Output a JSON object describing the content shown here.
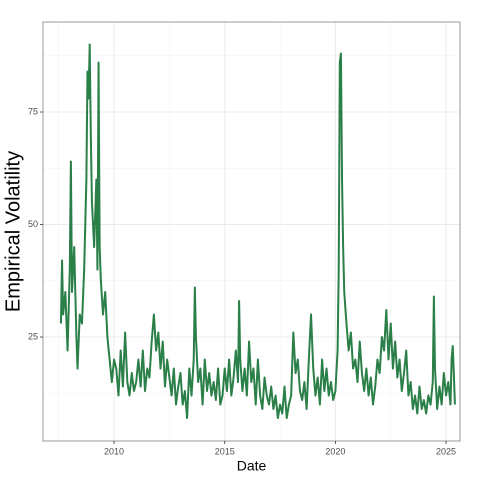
{
  "chart_data": {
    "type": "line",
    "x_label": "Date",
    "y_label": "Empirical Volatility",
    "xlim": [
      2006.79,
      2025.63
    ],
    "ylim": [
      1.9,
      95
    ],
    "xticks": [
      2010,
      2015,
      2020,
      2025
    ],
    "yticks": [
      25,
      50,
      75
    ],
    "xticks_minor": [
      2007.5,
      2012.5,
      2017.5,
      2022.5
    ],
    "yticks_minor": [
      12.5,
      37.5,
      62.5,
      87.5
    ],
    "grid": true,
    "x": [
      2007.6,
      2007.65,
      2007.7,
      2007.8,
      2007.9,
      2008.0,
      2008.05,
      2008.1,
      2008.2,
      2008.3,
      2008.35,
      2008.45,
      2008.55,
      2008.65,
      2008.75,
      2008.8,
      2008.85,
      2008.9,
      2008.95,
      2009.0,
      2009.1,
      2009.2,
      2009.25,
      2009.3,
      2009.35,
      2009.4,
      2009.5,
      2009.6,
      2009.7,
      2009.8,
      2009.9,
      2010.0,
      2010.1,
      2010.2,
      2010.3,
      2010.4,
      2010.5,
      2010.6,
      2010.7,
      2010.8,
      2010.9,
      2011.0,
      2011.1,
      2011.2,
      2011.3,
      2011.4,
      2011.5,
      2011.6,
      2011.7,
      2011.8,
      2011.9,
      2012.0,
      2012.1,
      2012.2,
      2012.3,
      2012.4,
      2012.5,
      2012.6,
      2012.7,
      2012.8,
      2012.9,
      2013.0,
      2013.1,
      2013.2,
      2013.3,
      2013.4,
      2013.5,
      2013.6,
      2013.65,
      2013.7,
      2013.8,
      2013.9,
      2014.0,
      2014.1,
      2014.2,
      2014.3,
      2014.4,
      2014.5,
      2014.6,
      2014.7,
      2014.8,
      2014.9,
      2015.0,
      2015.1,
      2015.2,
      2015.3,
      2015.4,
      2015.5,
      2015.6,
      2015.65,
      2015.7,
      2015.8,
      2015.9,
      2016.0,
      2016.1,
      2016.2,
      2016.3,
      2016.4,
      2016.5,
      2016.6,
      2016.7,
      2016.8,
      2016.9,
      2017.0,
      2017.1,
      2017.2,
      2017.3,
      2017.4,
      2017.5,
      2017.6,
      2017.7,
      2017.8,
      2017.9,
      2018.0,
      2018.1,
      2018.2,
      2018.3,
      2018.4,
      2018.5,
      2018.6,
      2018.7,
      2018.8,
      2018.9,
      2019.0,
      2019.1,
      2019.2,
      2019.3,
      2019.4,
      2019.5,
      2019.6,
      2019.7,
      2019.8,
      2019.9,
      2020.0,
      2020.1,
      2020.15,
      2020.2,
      2020.25,
      2020.3,
      2020.35,
      2020.4,
      2020.5,
      2020.6,
      2020.7,
      2020.8,
      2020.9,
      2021.0,
      2021.1,
      2021.2,
      2021.3,
      2021.4,
      2021.5,
      2021.6,
      2021.7,
      2021.8,
      2021.9,
      2022.0,
      2022.1,
      2022.2,
      2022.3,
      2022.4,
      2022.5,
      2022.6,
      2022.7,
      2022.8,
      2022.9,
      2023.0,
      2023.1,
      2023.2,
      2023.3,
      2023.4,
      2023.5,
      2023.6,
      2023.7,
      2023.8,
      2023.9,
      2024.0,
      2024.1,
      2024.2,
      2024.3,
      2024.4,
      2024.45,
      2024.5,
      2024.6,
      2024.7,
      2024.8,
      2024.9,
      2025.0,
      2025.1,
      2025.2,
      2025.25,
      2025.3,
      2025.35,
      2025.4
    ],
    "series": [
      {
        "name": "Empirical Volatility",
        "color": "#2b7f48",
        "values": [
          28,
          42,
          30,
          35,
          22,
          40,
          64,
          35,
          45,
          25,
          18,
          30,
          28,
          40,
          60,
          84,
          78,
          90,
          70,
          55,
          45,
          60,
          40,
          86,
          45,
          38,
          30,
          35,
          25,
          20,
          15,
          20,
          18,
          12,
          22,
          14,
          26,
          15,
          12,
          17,
          13,
          15,
          20,
          14,
          22,
          13,
          18,
          16,
          24,
          30,
          22,
          26,
          18,
          24,
          14,
          20,
          16,
          12,
          18,
          10,
          14,
          17,
          10,
          13,
          7,
          18,
          12,
          20,
          36,
          25,
          15,
          18,
          10,
          20,
          13,
          17,
          12,
          15,
          11,
          18,
          10,
          12,
          18,
          13,
          20,
          12,
          16,
          22,
          15,
          33,
          20,
          13,
          18,
          12,
          24,
          15,
          18,
          10,
          20,
          12,
          9,
          16,
          12,
          10,
          14,
          9,
          12,
          7,
          10,
          8,
          14,
          7,
          10,
          12,
          26,
          17,
          20,
          13,
          11,
          15,
          9,
          20,
          30,
          18,
          12,
          16,
          10,
          20,
          13,
          18,
          12,
          15,
          11,
          13,
          22,
          40,
          86,
          88,
          60,
          45,
          35,
          28,
          22,
          26,
          18,
          20,
          15,
          24,
          17,
          13,
          18,
          12,
          16,
          10,
          14,
          20,
          17,
          25,
          22,
          31,
          20,
          28,
          18,
          24,
          16,
          20,
          13,
          17,
          22,
          12,
          15,
          9,
          12,
          8,
          14,
          9,
          11,
          8,
          12,
          10,
          15,
          34,
          18,
          9,
          14,
          10,
          17,
          12,
          15,
          10,
          20,
          23,
          17,
          10
        ]
      }
    ]
  }
}
